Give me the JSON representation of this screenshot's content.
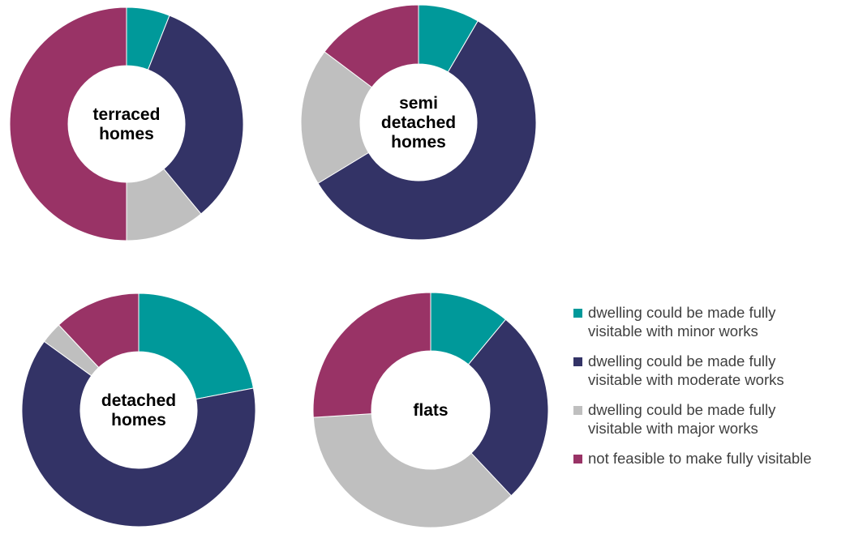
{
  "colors": {
    "minor": "#00999A",
    "moderate": "#333366",
    "major": "#BFBFBF",
    "not_feasible": "#993366"
  },
  "chart_data": {
    "type": "donut",
    "categories": [
      "dwelling could be made fully visitable with minor works",
      "dwelling could be made fully visitable with moderate works",
      "dwelling could be made fully visitable with major works",
      "not feasible to make fully visitable"
    ],
    "legend": {
      "position": "bottom-right",
      "entries": [
        {
          "label": "dwelling could be made fully\nvisitable with minor works",
          "color": "#00999A"
        },
        {
          "label": "dwelling could be made fully\nvisitable with moderate works",
          "color": "#333366"
        },
        {
          "label": "dwelling could be made fully\nvisitable with major works",
          "color": "#BFBFBF"
        },
        {
          "label": "not feasible to make fully visitable",
          "color": "#993366"
        }
      ]
    },
    "charts": [
      {
        "label": [
          "terraced",
          "homes"
        ],
        "values": [
          6,
          33,
          11,
          50
        ]
      },
      {
        "label": [
          "semi",
          "detached",
          "homes"
        ],
        "values": [
          8,
          55,
          18,
          14
        ]
      },
      {
        "label": [
          "detached",
          "homes"
        ],
        "values": [
          22,
          63,
          3,
          12
        ]
      },
      {
        "label": [
          "flats"
        ],
        "values": [
          11,
          27,
          36,
          26
        ]
      }
    ]
  }
}
